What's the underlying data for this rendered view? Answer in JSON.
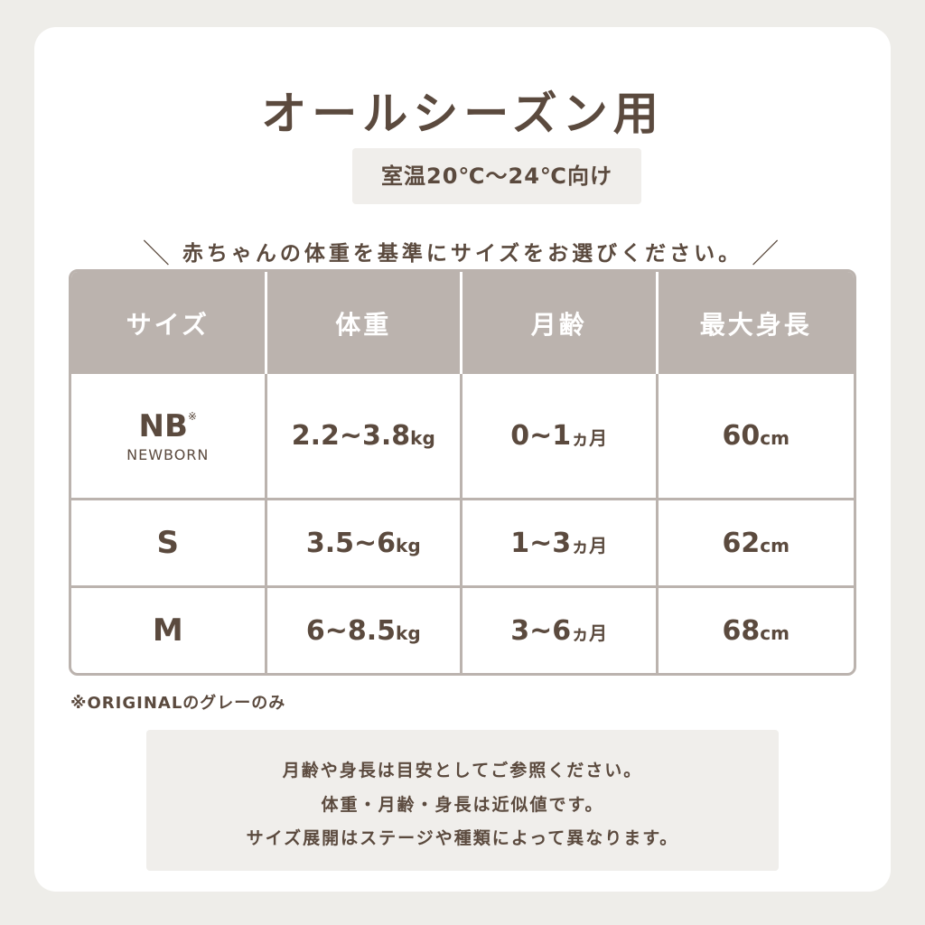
{
  "title": "オールシーズン用",
  "subtitle": "室温20℃〜24℃向け",
  "instruction": "赤ちゃんの体重を基準にサイズをお選びください。",
  "table": {
    "headers": [
      "サイズ",
      "体重",
      "月齢",
      "最大身長"
    ],
    "rows": [
      {
        "size": "NB",
        "size_mark": "※",
        "size_sub": "NEWBORN",
        "weight": "2.2~3.8",
        "weight_unit": "kg",
        "age": "0~1",
        "age_unit": "ヵ月",
        "height": "60",
        "height_unit": "cm"
      },
      {
        "size": "S",
        "weight": "3.5~6",
        "weight_unit": "kg",
        "age": "1~3",
        "age_unit": "ヵ月",
        "height": "62",
        "height_unit": "cm"
      },
      {
        "size": "M",
        "weight": "6~8.5",
        "weight_unit": "kg",
        "age": "3~6",
        "age_unit": "ヵ月",
        "height": "68",
        "height_unit": "cm"
      }
    ]
  },
  "footnote": "※ORIGINALのグレーのみ",
  "notes": [
    "月齢や身長は目安としてご参照ください。",
    "体重・月齢・身長は近似値です。",
    "サイズ展開はステージや種類によって異なります。"
  ],
  "colors": {
    "text": "#5b4a3e",
    "header": "#bbb3ae",
    "panel": "#f0eeeb",
    "background": "#eeede9"
  }
}
